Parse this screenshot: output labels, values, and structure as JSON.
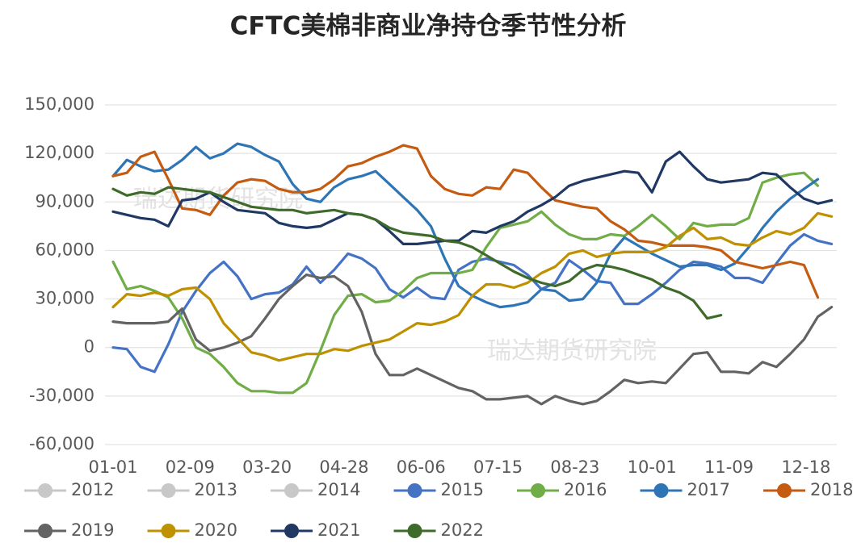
{
  "chart_data": {
    "type": "line",
    "title": "CFTC美棉非商业净持仓季节性分析",
    "watermarks": [
      "瑞达期货研究院",
      "瑞达期货研究院"
    ],
    "x": [
      0,
      7,
      14,
      21,
      28,
      35,
      42,
      49,
      56,
      63,
      70,
      77,
      84,
      91,
      98,
      105,
      112,
      119,
      126,
      133,
      140,
      147,
      154,
      161,
      168,
      175,
      182,
      189,
      196,
      203,
      210,
      217,
      224,
      231,
      238,
      245,
      252,
      259,
      266,
      273,
      280,
      287,
      294,
      301,
      308,
      315,
      322,
      329,
      336,
      343,
      350,
      357,
      364
    ],
    "xlim": [
      0,
      364
    ],
    "xticks": [
      {
        "value": 0,
        "label": "01-01"
      },
      {
        "value": 39,
        "label": "02-09"
      },
      {
        "value": 78,
        "label": "03-20"
      },
      {
        "value": 117,
        "label": "04-28"
      },
      {
        "value": 156,
        "label": "06-06"
      },
      {
        "value": 195,
        "label": "07-15"
      },
      {
        "value": 234,
        "label": "08-23"
      },
      {
        "value": 273,
        "label": "10-01"
      },
      {
        "value": 312,
        "label": "11-09"
      },
      {
        "value": 351,
        "label": "12-18"
      }
    ],
    "ylim": [
      -60000,
      150000
    ],
    "yticks": [
      {
        "value": -60000,
        "label": "-60,000"
      },
      {
        "value": -30000,
        "label": "-30,000"
      },
      0,
      {
        "value": 30000,
        "label": "30,000"
      },
      {
        "value": 60000,
        "label": "60,000"
      },
      {
        "value": 90000,
        "label": "90,000"
      },
      {
        "value": 120000,
        "label": "120,000"
      },
      {
        "value": 150000,
        "label": "150,000"
      }
    ],
    "grid": true,
    "legend": "bottom",
    "series": [
      {
        "name": "2012",
        "color": "#c8c8c8",
        "hidden": true
      },
      {
        "name": "2013",
        "color": "#c8c8c8",
        "hidden": true
      },
      {
        "name": "2014",
        "color": "#c8c8c8",
        "hidden": true
      },
      {
        "name": "2015",
        "color": "#4472c4",
        "values": [
          0,
          -1000,
          -12000,
          -15000,
          2000,
          22000,
          35000,
          46000,
          53000,
          44000,
          30000,
          33000,
          34000,
          39000,
          50000,
          40000,
          48000,
          58000,
          55000,
          49000,
          36000,
          31000,
          37000,
          31000,
          30000,
          48000,
          53000,
          55000,
          53000,
          51000,
          45000,
          36000,
          40000,
          54000,
          48000,
          41000,
          40000,
          27000,
          27000,
          33000,
          40000,
          48000,
          53000,
          52000,
          50000,
          43000,
          43000,
          40000,
          52000,
          63000,
          70000,
          66000,
          64000
        ]
      },
      {
        "name": "2016",
        "color": "#70ad47",
        "values": [
          53000,
          36000,
          38000,
          35000,
          31000,
          18000,
          0,
          -4000,
          -12000,
          -22000,
          -27000,
          -27000,
          -28000,
          -28000,
          -22000,
          -2000,
          20000,
          32000,
          33000,
          28000,
          29000,
          35000,
          43000,
          46000,
          46000,
          46000,
          48000,
          62000,
          74000,
          76000,
          78000,
          84000,
          76000,
          70000,
          67000,
          67000,
          70000,
          69000,
          75000,
          82000,
          75000,
          67000,
          77000,
          75000,
          76000,
          76000,
          80000,
          102000,
          105000,
          107000,
          108000,
          100000,
          null
        ]
      },
      {
        "name": "2017",
        "color": "#2e75b6",
        "values": [
          106000,
          116000,
          112000,
          109000,
          110000,
          116000,
          124000,
          117000,
          120000,
          126000,
          124000,
          119000,
          115000,
          101000,
          92000,
          90000,
          99000,
          104000,
          106000,
          109000,
          101000,
          93000,
          85000,
          75000,
          55000,
          38000,
          32000,
          28000,
          25000,
          26000,
          28000,
          36000,
          35000,
          29000,
          30000,
          40000,
          58000,
          68000,
          63000,
          58000,
          54000,
          50000,
          51000,
          51000,
          48000,
          52000,
          62000,
          74000,
          84000,
          92000,
          98000,
          104000,
          null
        ]
      },
      {
        "name": "2018",
        "color": "#c55a11",
        "values": [
          106000,
          108000,
          118000,
          121000,
          104000,
          86000,
          85000,
          82000,
          94000,
          102000,
          104000,
          103000,
          98000,
          96000,
          96000,
          98000,
          104000,
          112000,
          114000,
          118000,
          121000,
          125000,
          123000,
          106000,
          98000,
          95000,
          94000,
          99000,
          98000,
          110000,
          108000,
          99000,
          91000,
          89000,
          87000,
          86000,
          78000,
          73000,
          66000,
          65000,
          63000,
          63000,
          63000,
          62000,
          60000,
          53000,
          51000,
          49000,
          51000,
          53000,
          51000,
          31000,
          null
        ]
      },
      {
        "name": "2019",
        "color": "#636363",
        "values": [
          16000,
          15000,
          15000,
          15000,
          16000,
          24000,
          5000,
          -2000,
          0,
          3000,
          7000,
          18000,
          30000,
          38000,
          45000,
          43000,
          44000,
          38000,
          22000,
          -4000,
          -17000,
          -17000,
          -13000,
          -17000,
          -21000,
          -25000,
          -27000,
          -32000,
          -32000,
          -31000,
          -30000,
          -35000,
          -30000,
          -33000,
          -35000,
          -33000,
          -27000,
          -20000,
          -22000,
          -21000,
          -22000,
          -13000,
          -4000,
          -3000,
          -15000,
          -15000,
          -16000,
          -9000,
          -12000,
          -4000,
          5000,
          19000,
          25000
        ]
      },
      {
        "name": "2020",
        "color": "#bf9000",
        "values": [
          25000,
          33000,
          32000,
          34000,
          32000,
          36000,
          37000,
          30000,
          15000,
          6000,
          -3000,
          -5000,
          -8000,
          -6000,
          -4000,
          -4000,
          -1000,
          -2000,
          1000,
          3000,
          5000,
          10000,
          15000,
          14000,
          16000,
          20000,
          32000,
          39000,
          39000,
          37000,
          40000,
          46000,
          50000,
          58000,
          60000,
          56000,
          58000,
          59000,
          59000,
          59000,
          62000,
          69000,
          74000,
          67000,
          68000,
          64000,
          63000,
          68000,
          72000,
          70000,
          74000,
          83000,
          81000
        ]
      },
      {
        "name": "2021",
        "color": "#203864",
        "values": [
          84000,
          82000,
          80000,
          79000,
          75000,
          91000,
          92000,
          96000,
          90000,
          85000,
          84000,
          83000,
          77000,
          75000,
          74000,
          75000,
          79000,
          83000,
          82000,
          79000,
          72000,
          64000,
          64000,
          65000,
          66000,
          66000,
          72000,
          71000,
          75000,
          78000,
          84000,
          88000,
          93000,
          100000,
          103000,
          105000,
          107000,
          109000,
          108000,
          96000,
          115000,
          121000,
          112000,
          104000,
          102000,
          103000,
          104000,
          108000,
          107000,
          99000,
          92000,
          89000,
          91000
        ]
      },
      {
        "name": "2022",
        "color": "#3e6b2a",
        "values": [
          98000,
          94000,
          96000,
          95000,
          99000,
          98000,
          97000,
          96000,
          93000,
          90000,
          87000,
          86000,
          85000,
          85000,
          83000,
          84000,
          85000,
          83000,
          82000,
          79000,
          74000,
          71000,
          70000,
          69000,
          66000,
          65000,
          62000,
          57000,
          52000,
          47000,
          43000,
          40000,
          38000,
          41000,
          48000,
          51000,
          50000,
          48000,
          45000,
          42000,
          37000,
          34000,
          29000,
          18000,
          20000,
          null,
          null,
          null,
          null,
          null,
          null,
          null,
          null
        ]
      }
    ]
  }
}
